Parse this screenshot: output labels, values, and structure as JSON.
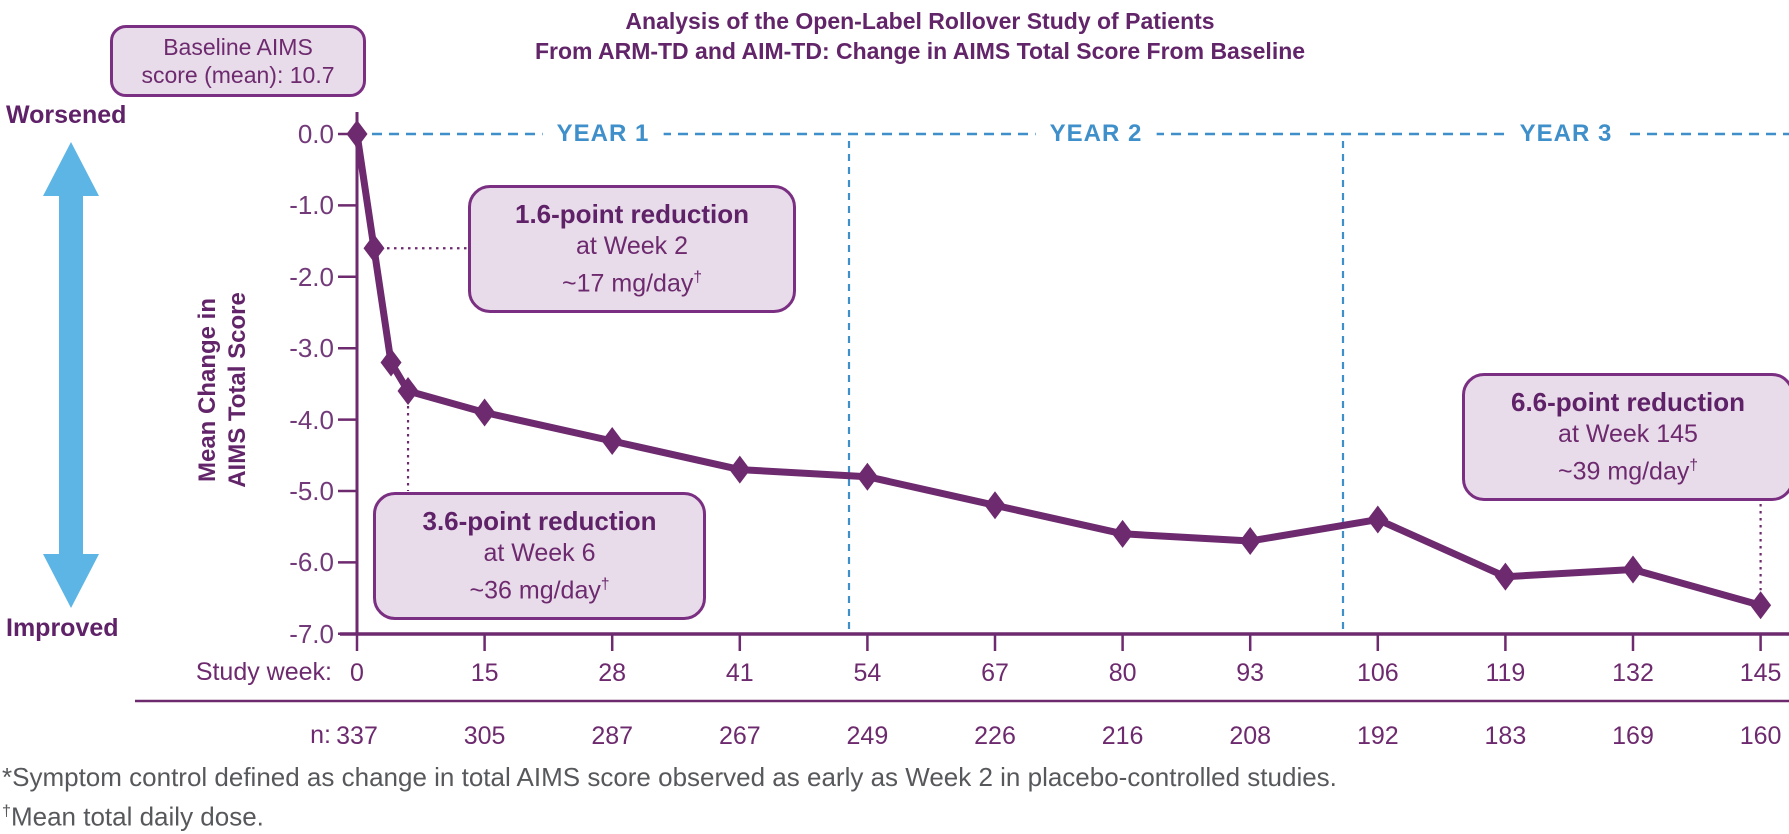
{
  "title": {
    "line1": "Analysis of the Open-Label Rollover Study of Patients",
    "line2": "From ARM-TD and AIM-TD: Change in AIMS Total Score From Baseline"
  },
  "baseline_badge": {
    "line1": "Baseline AIMS",
    "line2": "score (mean): 10.7"
  },
  "direction_labels": {
    "top": "Worsened",
    "bottom": "Improved"
  },
  "y_axis_label": {
    "line1": "Mean Change in",
    "line2": "AIMS Total Score"
  },
  "year_labels": [
    "YEAR 1",
    "YEAR 2",
    "YEAR 3"
  ],
  "callouts": [
    {
      "headline": "1.6-point reduction",
      "line2": "at Week 2",
      "dose": "~17 mg/day",
      "dagger": "†"
    },
    {
      "headline": "3.6-point reduction",
      "line2": "at Week 6",
      "dose": "~36 mg/day",
      "dagger": "†"
    },
    {
      "headline": "6.6-point reduction",
      "line2": "at Week 145",
      "dose": "~39 mg/day",
      "dagger": "†"
    }
  ],
  "x_axis_label": "Study week:",
  "n_label": "n:",
  "footnotes": {
    "line1": "*Symptom control defined as change in total AIMS score observed as early as Week 2 in placebo-controlled studies.",
    "line2_dagger": "†",
    "line2_text": "Mean total daily dose."
  },
  "colors": {
    "purple": "#6d2a6e",
    "blue_dashed": "#3f8fca",
    "arrow_blue": "#5db5e6",
    "callout_bg": "#e8dcea",
    "callout_border": "#7b2f82",
    "footnote_gray": "#57585b"
  },
  "chart_data": {
    "type": "line",
    "title": "Analysis of the Open-Label Rollover Study of Patients From ARM-TD and AIM-TD: Change in AIMS Total Score From Baseline",
    "xlabel": "Study week",
    "ylabel": "Mean Change in AIMS Total Score",
    "x": [
      0,
      2,
      4,
      6,
      15,
      28,
      41,
      54,
      67,
      80,
      93,
      106,
      119,
      132,
      145
    ],
    "values": [
      0.0,
      -1.6,
      -3.2,
      -3.6,
      -3.9,
      -4.3,
      -4.7,
      -4.8,
      -5.2,
      -5.6,
      -5.7,
      -5.4,
      -6.2,
      -6.1,
      -6.6
    ],
    "x_ticks": [
      "0",
      "15",
      "28",
      "41",
      "54",
      "67",
      "80",
      "93",
      "106",
      "119",
      "132",
      "145"
    ],
    "y_ticks": [
      "0.0",
      "-1.0",
      "-2.0",
      "-3.0",
      "-4.0",
      "-5.0",
      "-6.0",
      "-7.0"
    ],
    "ylim": [
      -7.0,
      0.0
    ],
    "grid": false,
    "n_values": [
      "337",
      "305",
      "287",
      "267",
      "249",
      "226",
      "216",
      "208",
      "192",
      "183",
      "169",
      "160"
    ],
    "year_spans": [
      "YEAR 1",
      "YEAR 2",
      "YEAR 3"
    ],
    "baseline_aims_mean": 10.7,
    "annotations": [
      "1.6-point reduction at Week 2, ~17 mg/day (mean total daily dose)",
      "3.6-point reduction at Week 6, ~36 mg/day (mean total daily dose)",
      "6.6-point reduction at Week 145, ~39 mg/day (mean total daily dose)"
    ]
  }
}
